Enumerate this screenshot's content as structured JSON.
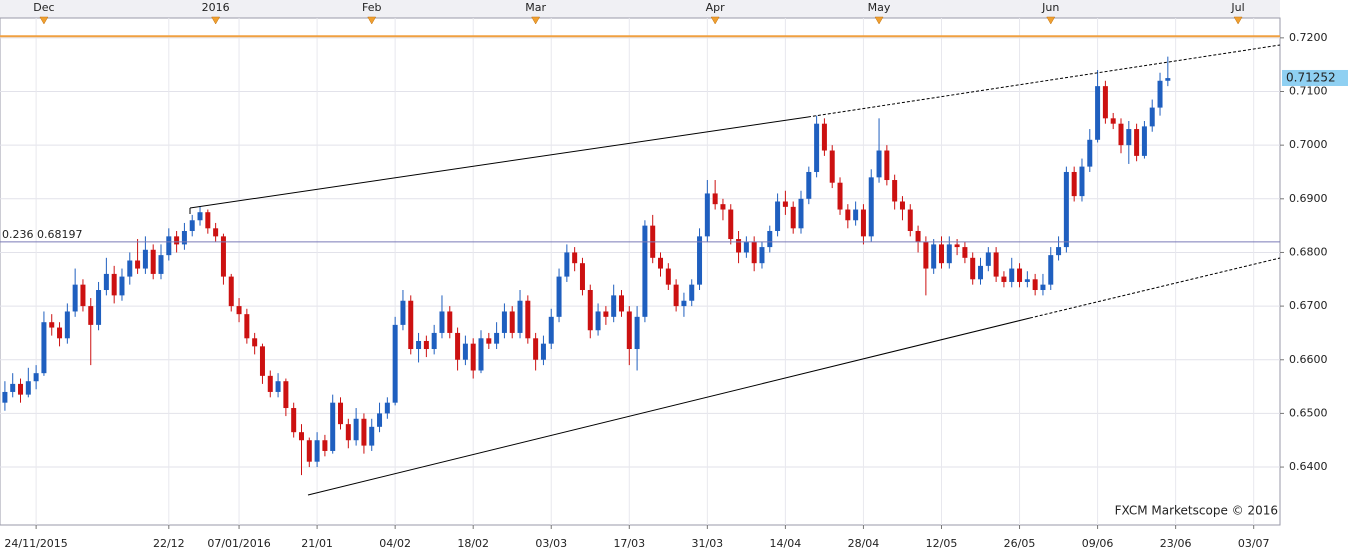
{
  "chart_data": {
    "type": "candlestick",
    "watermark": "FXCM Marketscope © 2016",
    "up_color": "#1f5fbf",
    "down_color": "#cc1111",
    "ylim": [
      0.6292,
      0.7237
    ],
    "yticks": [
      {
        "value": 0.64,
        "label": "0.6400"
      },
      {
        "value": 0.65,
        "label": "0.6500"
      },
      {
        "value": 0.66,
        "label": "0.6600"
      },
      {
        "value": 0.67,
        "label": "0.6700"
      },
      {
        "value": 0.68,
        "label": "0.6800"
      },
      {
        "value": 0.69,
        "label": "0.6900"
      },
      {
        "value": 0.7,
        "label": "0.7000"
      },
      {
        "value": 0.71,
        "label": "0.7100"
      },
      {
        "value": 0.72,
        "label": "0.7200"
      }
    ],
    "grid": true,
    "last_price": {
      "value": 0.71252,
      "label": "0.71252",
      "color": "#8fd0f2"
    },
    "levels": [
      {
        "label": "0.236 0.68197",
        "value": 0.68197,
        "color": "#7a7ab8"
      },
      {
        "value": 0.7203,
        "color": "#f0a040"
      }
    ],
    "categories": [
      null,
      null,
      null,
      null,
      "24/11/2015",
      null,
      null,
      null,
      null,
      null,
      null,
      null,
      null,
      null,
      null,
      null,
      null,
      null,
      null,
      null,
      null,
      "22/12",
      null,
      null,
      null,
      null,
      null,
      null,
      null,
      null,
      "07/01/2016",
      null,
      null,
      null,
      null,
      null,
      null,
      null,
      null,
      null,
      "21/01",
      null,
      null,
      null,
      null,
      null,
      null,
      null,
      null,
      null,
      "04/02",
      null,
      null,
      null,
      null,
      null,
      null,
      null,
      null,
      null,
      "18/02",
      null,
      null,
      null,
      null,
      null,
      null,
      null,
      null,
      null,
      "03/03",
      null,
      null,
      null,
      null,
      null,
      null,
      null,
      null,
      null,
      "17/03",
      null,
      null,
      null,
      null,
      null,
      null,
      null,
      null,
      null,
      "31/03",
      null,
      null,
      null,
      null,
      null,
      null,
      null,
      null,
      null,
      "14/04",
      null,
      null,
      null,
      null,
      null,
      null,
      null,
      null,
      null,
      "28/04",
      null,
      null,
      null,
      null,
      null,
      null,
      null,
      null,
      null,
      "12/05",
      null,
      null,
      null,
      null,
      null,
      null,
      null,
      null,
      null,
      "26/05",
      null,
      null,
      null,
      null,
      null,
      null,
      null,
      null,
      null,
      "09/06",
      null,
      null,
      null,
      null,
      null,
      null,
      null,
      null,
      null,
      "23/06",
      null,
      null,
      null,
      null,
      null,
      null,
      null,
      null,
      null,
      "03/07",
      null,
      null,
      null
    ],
    "top_categories": [
      null,
      null,
      null,
      null,
      null,
      "Dec",
      null,
      null,
      null,
      null,
      null,
      null,
      null,
      null,
      null,
      null,
      null,
      null,
      null,
      null,
      null,
      null,
      null,
      null,
      null,
      null,
      null,
      "2016",
      null,
      null,
      null,
      null,
      null,
      null,
      null,
      null,
      null,
      null,
      null,
      null,
      null,
      null,
      null,
      null,
      null,
      null,
      null,
      "Feb",
      null,
      null,
      null,
      null,
      null,
      null,
      null,
      null,
      null,
      null,
      null,
      null,
      null,
      null,
      null,
      null,
      null,
      null,
      null,
      null,
      "Mar",
      null,
      null,
      null,
      null,
      null,
      null,
      null,
      null,
      null,
      null,
      null,
      null,
      null,
      null,
      null,
      null,
      null,
      null,
      null,
      null,
      null,
      null,
      "Apr",
      null,
      null,
      null,
      null,
      null,
      null,
      null,
      null,
      null,
      null,
      null,
      null,
      null,
      null,
      null,
      null,
      null,
      null,
      null,
      null,
      "May",
      null,
      null,
      null,
      null,
      null,
      null,
      null,
      null,
      null,
      null,
      null,
      null,
      null,
      null,
      null,
      null,
      null,
      null,
      null,
      null,
      null,
      "Jun",
      null,
      null,
      null,
      null,
      null,
      null,
      null,
      null,
      null,
      null,
      null,
      null,
      null,
      null,
      null,
      null,
      null,
      null,
      null,
      null,
      null,
      null,
      null,
      "Jul",
      null,
      null,
      null,
      null,
      null
    ],
    "ohlc": [
      [
        0.652,
        0.656,
        0.6505,
        0.654
      ],
      [
        0.654,
        0.6575,
        0.653,
        0.6555
      ],
      [
        0.6555,
        0.6565,
        0.652,
        0.6535
      ],
      [
        0.6535,
        0.6585,
        0.653,
        0.656
      ],
      [
        0.656,
        0.659,
        0.6545,
        0.6575
      ],
      [
        0.6575,
        0.669,
        0.657,
        0.667
      ],
      [
        0.667,
        0.6685,
        0.6645,
        0.666
      ],
      [
        0.666,
        0.667,
        0.6625,
        0.664
      ],
      [
        0.664,
        0.6705,
        0.663,
        0.669
      ],
      [
        0.669,
        0.677,
        0.668,
        0.674
      ],
      [
        0.674,
        0.675,
        0.669,
        0.67
      ],
      [
        0.67,
        0.6715,
        0.659,
        0.6665
      ],
      [
        0.6665,
        0.6745,
        0.6655,
        0.673
      ],
      [
        0.673,
        0.679,
        0.672,
        0.676
      ],
      [
        0.676,
        0.6775,
        0.6705,
        0.672
      ],
      [
        0.672,
        0.677,
        0.671,
        0.6755
      ],
      [
        0.6755,
        0.68,
        0.674,
        0.6785
      ],
      [
        0.6785,
        0.6825,
        0.676,
        0.677
      ],
      [
        0.677,
        0.683,
        0.676,
        0.6805
      ],
      [
        0.6805,
        0.6815,
        0.675,
        0.676
      ],
      [
        0.676,
        0.6815,
        0.675,
        0.6795
      ],
      [
        0.6795,
        0.6845,
        0.6785,
        0.683
      ],
      [
        0.683,
        0.684,
        0.68,
        0.6815
      ],
      [
        0.6815,
        0.6855,
        0.6805,
        0.684
      ],
      [
        0.684,
        0.687,
        0.683,
        0.686
      ],
      [
        0.686,
        0.6885,
        0.685,
        0.6875
      ],
      [
        0.6875,
        0.688,
        0.6835,
        0.6845
      ],
      [
        0.6845,
        0.6855,
        0.682,
        0.683
      ],
      [
        0.683,
        0.6835,
        0.674,
        0.6755
      ],
      [
        0.6755,
        0.676,
        0.669,
        0.67
      ],
      [
        0.67,
        0.6715,
        0.667,
        0.6685
      ],
      [
        0.6685,
        0.6695,
        0.663,
        0.664
      ],
      [
        0.664,
        0.665,
        0.661,
        0.6625
      ],
      [
        0.6625,
        0.663,
        0.6555,
        0.657
      ],
      [
        0.657,
        0.658,
        0.653,
        0.654
      ],
      [
        0.654,
        0.6575,
        0.653,
        0.656
      ],
      [
        0.656,
        0.6565,
        0.6495,
        0.651
      ],
      [
        0.651,
        0.652,
        0.6455,
        0.6465
      ],
      [
        0.6465,
        0.648,
        0.6385,
        0.645
      ],
      [
        0.645,
        0.6455,
        0.64,
        0.641
      ],
      [
        0.641,
        0.6465,
        0.64,
        0.645
      ],
      [
        0.645,
        0.646,
        0.642,
        0.643
      ],
      [
        0.643,
        0.6535,
        0.6425,
        0.652
      ],
      [
        0.652,
        0.653,
        0.647,
        0.648
      ],
      [
        0.648,
        0.649,
        0.6435,
        0.645
      ],
      [
        0.645,
        0.651,
        0.644,
        0.649
      ],
      [
        0.649,
        0.65,
        0.6425,
        0.644
      ],
      [
        0.644,
        0.649,
        0.643,
        0.6475
      ],
      [
        0.6475,
        0.652,
        0.6465,
        0.65
      ],
      [
        0.65,
        0.653,
        0.649,
        0.652
      ],
      [
        0.652,
        0.668,
        0.6515,
        0.6665
      ],
      [
        0.6665,
        0.673,
        0.6655,
        0.671
      ],
      [
        0.671,
        0.672,
        0.661,
        0.662
      ],
      [
        0.662,
        0.665,
        0.6595,
        0.6635
      ],
      [
        0.6635,
        0.6645,
        0.6605,
        0.662
      ],
      [
        0.662,
        0.6665,
        0.661,
        0.665
      ],
      [
        0.665,
        0.672,
        0.664,
        0.669
      ],
      [
        0.669,
        0.67,
        0.664,
        0.665
      ],
      [
        0.665,
        0.666,
        0.658,
        0.66
      ],
      [
        0.66,
        0.6645,
        0.659,
        0.663
      ],
      [
        0.663,
        0.664,
        0.6565,
        0.658
      ],
      [
        0.658,
        0.6655,
        0.6575,
        0.664
      ],
      [
        0.664,
        0.665,
        0.662,
        0.663
      ],
      [
        0.663,
        0.667,
        0.662,
        0.665
      ],
      [
        0.665,
        0.6705,
        0.664,
        0.669
      ],
      [
        0.669,
        0.67,
        0.664,
        0.665
      ],
      [
        0.665,
        0.673,
        0.664,
        0.671
      ],
      [
        0.671,
        0.672,
        0.663,
        0.664
      ],
      [
        0.664,
        0.665,
        0.658,
        0.66
      ],
      [
        0.66,
        0.6645,
        0.659,
        0.663
      ],
      [
        0.663,
        0.6695,
        0.662,
        0.668
      ],
      [
        0.668,
        0.677,
        0.667,
        0.6755
      ],
      [
        0.6755,
        0.6815,
        0.6745,
        0.68
      ],
      [
        0.68,
        0.681,
        0.6765,
        0.678
      ],
      [
        0.678,
        0.679,
        0.672,
        0.673
      ],
      [
        0.673,
        0.674,
        0.664,
        0.6655
      ],
      [
        0.6655,
        0.6705,
        0.6645,
        0.669
      ],
      [
        0.669,
        0.67,
        0.6665,
        0.668
      ],
      [
        0.668,
        0.674,
        0.667,
        0.672
      ],
      [
        0.672,
        0.673,
        0.668,
        0.669
      ],
      [
        0.669,
        0.67,
        0.659,
        0.662
      ],
      [
        0.662,
        0.67,
        0.658,
        0.668
      ],
      [
        0.668,
        0.686,
        0.667,
        0.685
      ],
      [
        0.685,
        0.687,
        0.678,
        0.679
      ],
      [
        0.679,
        0.68,
        0.6755,
        0.677
      ],
      [
        0.677,
        0.678,
        0.673,
        0.674
      ],
      [
        0.674,
        0.675,
        0.669,
        0.67
      ],
      [
        0.67,
        0.6725,
        0.668,
        0.671
      ],
      [
        0.671,
        0.675,
        0.67,
        0.674
      ],
      [
        0.674,
        0.6845,
        0.673,
        0.683
      ],
      [
        0.683,
        0.6935,
        0.682,
        0.691
      ],
      [
        0.691,
        0.6935,
        0.688,
        0.689
      ],
      [
        0.689,
        0.69,
        0.686,
        0.688
      ],
      [
        0.688,
        0.689,
        0.6815,
        0.6825
      ],
      [
        0.6825,
        0.684,
        0.678,
        0.68
      ],
      [
        0.68,
        0.683,
        0.679,
        0.682
      ],
      [
        0.682,
        0.683,
        0.6765,
        0.678
      ],
      [
        0.678,
        0.682,
        0.677,
        0.681
      ],
      [
        0.681,
        0.685,
        0.68,
        0.684
      ],
      [
        0.684,
        0.691,
        0.683,
        0.6895
      ],
      [
        0.6895,
        0.6915,
        0.687,
        0.6885
      ],
      [
        0.6885,
        0.6895,
        0.6835,
        0.6845
      ],
      [
        0.6845,
        0.6915,
        0.6835,
        0.69
      ],
      [
        0.69,
        0.696,
        0.689,
        0.695
      ],
      [
        0.695,
        0.7055,
        0.694,
        0.704
      ],
      [
        0.704,
        0.705,
        0.698,
        0.699
      ],
      [
        0.699,
        0.7,
        0.692,
        0.693
      ],
      [
        0.693,
        0.694,
        0.687,
        0.688
      ],
      [
        0.688,
        0.689,
        0.6845,
        0.686
      ],
      [
        0.686,
        0.6895,
        0.685,
        0.688
      ],
      [
        0.688,
        0.689,
        0.6815,
        0.683
      ],
      [
        0.683,
        0.6955,
        0.682,
        0.694
      ],
      [
        0.694,
        0.705,
        0.693,
        0.699
      ],
      [
        0.699,
        0.7,
        0.6925,
        0.6935
      ],
      [
        0.6935,
        0.6945,
        0.688,
        0.6895
      ],
      [
        0.6895,
        0.6905,
        0.686,
        0.688
      ],
      [
        0.688,
        0.689,
        0.683,
        0.684
      ],
      [
        0.684,
        0.685,
        0.68,
        0.682
      ],
      [
        0.682,
        0.683,
        0.672,
        0.677
      ],
      [
        0.677,
        0.6825,
        0.676,
        0.6815
      ],
      [
        0.6815,
        0.683,
        0.677,
        0.678
      ],
      [
        0.678,
        0.683,
        0.677,
        0.6815
      ],
      [
        0.6815,
        0.6825,
        0.6795,
        0.681
      ],
      [
        0.681,
        0.682,
        0.678,
        0.679
      ],
      [
        0.679,
        0.68,
        0.674,
        0.675
      ],
      [
        0.675,
        0.679,
        0.674,
        0.6775
      ],
      [
        0.6775,
        0.681,
        0.6765,
        0.68
      ],
      [
        0.68,
        0.681,
        0.6745,
        0.6755
      ],
      [
        0.6755,
        0.6765,
        0.6735,
        0.6745
      ],
      [
        0.6745,
        0.679,
        0.6735,
        0.677
      ],
      [
        0.677,
        0.678,
        0.6735,
        0.6745
      ],
      [
        0.6745,
        0.6765,
        0.6735,
        0.675
      ],
      [
        0.675,
        0.676,
        0.672,
        0.673
      ],
      [
        0.673,
        0.676,
        0.672,
        0.674
      ],
      [
        0.674,
        0.681,
        0.673,
        0.6795
      ],
      [
        0.6795,
        0.683,
        0.6785,
        0.681
      ],
      [
        0.681,
        0.696,
        0.68,
        0.695
      ],
      [
        0.695,
        0.696,
        0.6895,
        0.6905
      ],
      [
        0.6905,
        0.6975,
        0.6895,
        0.696
      ],
      [
        0.696,
        0.703,
        0.695,
        0.701
      ],
      [
        0.701,
        0.714,
        0.7005,
        0.711
      ],
      [
        0.711,
        0.712,
        0.704,
        0.705
      ],
      [
        0.705,
        0.706,
        0.703,
        0.704
      ],
      [
        0.704,
        0.705,
        0.6985,
        0.7
      ],
      [
        0.7,
        0.7045,
        0.6965,
        0.703
      ],
      [
        0.703,
        0.704,
        0.697,
        0.698
      ],
      [
        0.698,
        0.7045,
        0.6975,
        0.7035
      ],
      [
        0.7035,
        0.7085,
        0.7025,
        0.707
      ],
      [
        0.707,
        0.7135,
        0.7055,
        0.712
      ],
      [
        0.712,
        0.7165,
        0.711,
        0.7125
      ],
      null,
      null,
      null,
      null,
      null,
      null,
      null,
      null,
      null,
      null,
      null,
      null,
      null,
      null
    ]
  }
}
